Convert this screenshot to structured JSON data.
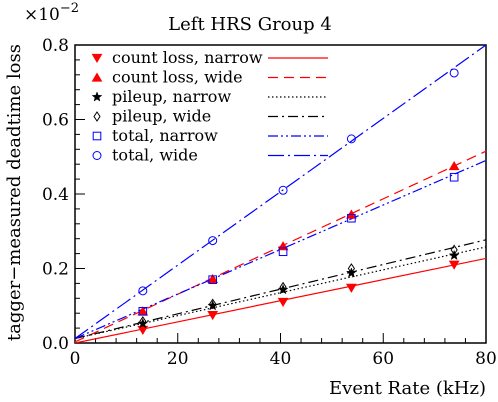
{
  "chart_data": {
    "type": "scatter",
    "title": "Left HRS Group 4",
    "xlabel": "Event Rate (kHz)",
    "ylabel": "tagger−measured deadtime loss",
    "y_multiplier_label": "×10",
    "y_multiplier_exponent": "−2",
    "xlim": [
      0,
      80
    ],
    "ylim": [
      0,
      0.8
    ],
    "x_ticks": [
      0,
      20,
      40,
      60,
      80
    ],
    "y_ticks": [
      0,
      0.2,
      0.4,
      0.6,
      0.8
    ],
    "x_tick_labels": [
      "0",
      "20",
      "40",
      "60",
      "80"
    ],
    "y_tick_labels": [
      "0.0",
      "0.2",
      "0.4",
      "0.6",
      "0.8"
    ],
    "legend_position": "top-left",
    "grid": false,
    "series": [
      {
        "name": "count loss, narrow",
        "color": "#ff0000",
        "marker": "triangle-down",
        "line_style": "solid",
        "x": [
          13.2,
          26.8,
          40.5,
          53.8,
          73.8
        ],
        "y": [
          0.035,
          0.075,
          0.11,
          0.148,
          0.21
        ],
        "fit": [
          [
            0,
            0
          ],
          [
            80,
            0.227
          ]
        ]
      },
      {
        "name": "count loss, wide",
        "color": "#ff0000",
        "marker": "triangle-up",
        "line_style": "dashed",
        "x": [
          13.2,
          26.8,
          40.5,
          53.8,
          73.8
        ],
        "y": [
          0.085,
          0.172,
          0.26,
          0.345,
          0.475
        ],
        "fit": [
          [
            0,
            0.003
          ],
          [
            80,
            0.515
          ]
        ]
      },
      {
        "name": "pileup, narrow",
        "color": "#000000",
        "marker": "star",
        "line_style": "dotted",
        "x": [
          13.2,
          26.8,
          40.5,
          53.8,
          73.8
        ],
        "y": [
          0.052,
          0.1,
          0.143,
          0.188,
          0.235
        ],
        "fit": [
          [
            0,
            0.012
          ],
          [
            80,
            0.258
          ]
        ]
      },
      {
        "name": "pileup, wide",
        "color": "#000000",
        "marker": "diamond-open",
        "line_style": "dashdot",
        "x": [
          13.2,
          26.8,
          40.5,
          53.8,
          73.8
        ],
        "y": [
          0.058,
          0.105,
          0.15,
          0.2,
          0.25
        ],
        "fit": [
          [
            0,
            0.012
          ],
          [
            80,
            0.277
          ]
        ]
      },
      {
        "name": "total, narrow",
        "color": "#0000ff",
        "marker": "square-open",
        "line_style": "dashdotdot",
        "x": [
          13.2,
          26.8,
          40.5,
          53.8,
          73.8
        ],
        "y": [
          0.085,
          0.17,
          0.245,
          0.335,
          0.445
        ],
        "fit": [
          [
            0,
            0.012
          ],
          [
            80,
            0.49
          ]
        ]
      },
      {
        "name": "total, wide",
        "color": "#0000ff",
        "marker": "circle-open",
        "line_style": "longdashdot",
        "x": [
          13.2,
          26.8,
          40.5,
          53.8,
          73.8
        ],
        "y": [
          0.14,
          0.275,
          0.41,
          0.548,
          0.725
        ],
        "fit": [
          [
            0,
            0.012
          ],
          [
            80,
            0.8
          ]
        ]
      }
    ]
  }
}
